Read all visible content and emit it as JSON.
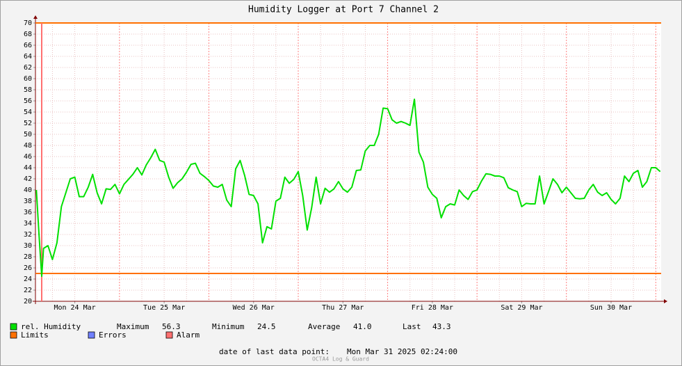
{
  "chart_data": {
    "type": "line",
    "title": "Humidity Logger at Port 7 Channel 2",
    "x": [
      0.07,
      0.1,
      0.13,
      0.15,
      0.2,
      0.25,
      0.3,
      0.35,
      0.4,
      0.45,
      0.5,
      0.55,
      0.6,
      0.65,
      0.7,
      0.75,
      0.8,
      0.85,
      0.9,
      0.95,
      1.0,
      1.05,
      1.1,
      1.15,
      1.2,
      1.25,
      1.3,
      1.35,
      1.4,
      1.45,
      1.5,
      1.55,
      1.6,
      1.65,
      1.7,
      1.75,
      1.8,
      1.85,
      1.9,
      1.95,
      2.0,
      2.05,
      2.1,
      2.15,
      2.2,
      2.25,
      2.3,
      2.35,
      2.4,
      2.45,
      2.5,
      2.55,
      2.6,
      2.65,
      2.7,
      2.75,
      2.8,
      2.85,
      2.9,
      2.95,
      3.0,
      3.05,
      3.1,
      3.15,
      3.2,
      3.25,
      3.3,
      3.35,
      3.4,
      3.45,
      3.5,
      3.55,
      3.6,
      3.65,
      3.7,
      3.75,
      3.8,
      3.85,
      3.9,
      3.95,
      4.0,
      4.05,
      4.1,
      4.15,
      4.2,
      4.25,
      4.3,
      4.35,
      4.4,
      4.45,
      4.5,
      4.55,
      4.6,
      4.65,
      4.7,
      4.75,
      4.8,
      4.85,
      4.9,
      4.95,
      5.0,
      5.05,
      5.1,
      5.15,
      5.2,
      5.25,
      5.3,
      5.35,
      5.4,
      5.45,
      5.5,
      5.55,
      5.6,
      5.65,
      5.7,
      5.75,
      5.8,
      5.85,
      5.9,
      5.95,
      6.0,
      6.05,
      6.1,
      6.15,
      6.2,
      6.25,
      6.3,
      6.35,
      6.4,
      6.45,
      6.5,
      6.55,
      6.6,
      6.65,
      6.7,
      6.75,
      6.8,
      6.85,
      6.9,
      6.95,
      7.0,
      7.05
    ],
    "series": [
      {
        "name": "rel. Humidity",
        "color": "#00e000",
        "values": [
          40,
          32,
          24.5,
          29.5,
          30,
          27.5,
          30.5,
          37,
          39.5,
          42,
          42.3,
          38.8,
          38.8,
          40.5,
          42.8,
          39.5,
          37.5,
          40.2,
          40.1,
          41,
          39.3,
          41,
          41.9,
          42.8,
          44,
          42.7,
          44.5,
          45.8,
          47.3,
          45.3,
          45,
          42.3,
          40.3,
          41.3,
          42,
          43.2,
          44.6,
          44.8,
          43,
          42.4,
          41.7,
          40.7,
          40.5,
          41,
          38.2,
          37,
          43.8,
          45.3,
          42.6,
          39.2,
          39,
          37.5,
          30.5,
          33.4,
          33,
          38,
          38.5,
          42.3,
          41.2,
          41.9,
          43.3,
          39,
          32.8,
          36.8,
          42.3,
          37.5,
          40.3,
          39.6,
          40.2,
          41.5,
          40.2,
          39.6,
          40.5,
          43.5,
          43.6,
          47,
          48,
          48,
          50,
          54.7,
          54.6,
          52.6,
          52,
          52.3,
          52,
          51.6,
          56.3,
          46.8,
          45,
          40.5,
          39.2,
          38.5,
          35,
          37,
          37.5,
          37.3,
          40,
          39,
          38.3,
          39.7,
          40,
          41.6,
          42.9,
          42.8,
          42.5,
          42.5,
          42.2,
          40.4,
          40,
          39.7,
          37,
          37.6,
          37.5,
          37.5,
          42.5,
          37.5,
          39.7,
          42,
          41,
          39.5,
          40.5,
          39.5,
          38.5,
          38.4,
          38.5,
          40,
          41,
          39.6,
          39,
          39.5,
          38.3,
          37.5,
          38.5,
          42.5,
          41.5,
          43,
          43.5,
          40.5,
          41.5,
          44,
          44,
          43.3
        ]
      }
    ],
    "limits": {
      "name": "Limits",
      "color": "#ff7000",
      "values": [
        70,
        25
      ]
    },
    "errors": {
      "name": "Errors",
      "color": "#7080ff"
    },
    "alarm": {
      "name": "Alarm",
      "color": "#ff7070",
      "x": [
        0.13
      ]
    },
    "stats": [
      {
        "label": "Maximum",
        "value": "56.3"
      },
      {
        "label": "Minimum",
        "value": "24.5"
      },
      {
        "label": "Average",
        "value": "41.0"
      },
      {
        "label": "Last",
        "value": "43.3"
      }
    ],
    "xlim": [
      0.06,
      7.06
    ],
    "xticks": [
      {
        "value": 0.5,
        "label": "Mon 24 Mar"
      },
      {
        "value": 1.5,
        "label": "Tue 25 Mar"
      },
      {
        "value": 2.5,
        "label": "Wed 26 Mar"
      },
      {
        "value": 3.5,
        "label": "Thu 27 Mar"
      },
      {
        "value": 4.5,
        "label": "Fri 28 Mar"
      },
      {
        "value": 5.5,
        "label": "Sat 29 Mar"
      },
      {
        "value": 6.5,
        "label": "Sun 30 Mar"
      }
    ],
    "xgrid": [
      0.25,
      0.5,
      0.75,
      1,
      1.25,
      1.5,
      1.75,
      2,
      2.25,
      2.5,
      2.75,
      3,
      3.25,
      3.5,
      3.75,
      4,
      4.25,
      4.5,
      4.75,
      5,
      5.25,
      5.5,
      5.75,
      6,
      6.25,
      6.5,
      6.75,
      7
    ],
    "ylim": [
      20,
      70
    ],
    "yticks": [
      20,
      22,
      24,
      26,
      28,
      30,
      32,
      34,
      36,
      38,
      40,
      42,
      44,
      46,
      48,
      50,
      52,
      54,
      56,
      58,
      60,
      62,
      64,
      66,
      68,
      70
    ],
    "grid": true,
    "footer": {
      "label": "date of last data point:",
      "value": "Mon Mar 31 2025 02:24:00"
    },
    "watermark": "OCTA4 Log & Guard"
  }
}
